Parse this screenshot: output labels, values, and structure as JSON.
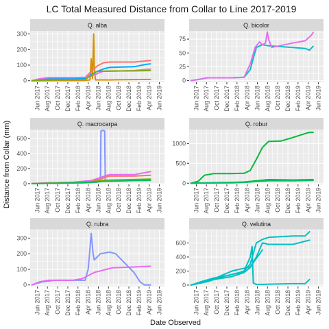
{
  "title": "LC Total Measured Distance from Collar to Line 2017-2019",
  "x_axis_title": "Date Observed",
  "y_axis_title": "Distance from Collar (mm)",
  "x_tick_labels": [
    "Jun 2017",
    "Aug 2017",
    "Oct 2017",
    "Dec 2017",
    "Feb 2018",
    "Apr 2018",
    "Jun 2018",
    "Aug 2018",
    "Oct 2018",
    "Dec 2018",
    "Feb 2019",
    "Apr 2019",
    "Jun 2019"
  ],
  "colors": {
    "orange": "#D89000",
    "salmon": "#F8766D",
    "blue": "#00A9FF",
    "purple": "#C77CFF",
    "magenta": "#E76BF3",
    "teal": "#00BFC4",
    "periwinkle": "#8494FF",
    "green": "#00BA38",
    "olive": "#7CAE00",
    "seagreen": "#00BE67"
  },
  "chart_data": {
    "type": "line",
    "x_range": [
      2017.3,
      2019.5
    ],
    "x_ticks": [
      2017.417,
      2017.583,
      2017.75,
      2017.917,
      2018.083,
      2018.25,
      2018.417,
      2018.583,
      2018.75,
      2018.917,
      2019.083,
      2019.25,
      2019.417
    ],
    "panels": [
      {
        "strip": "Q. alba",
        "ylim": [
          -10,
          320
        ],
        "y_ticks": [
          0,
          100,
          200,
          300
        ],
        "y_tick_labels": [
          "0",
          "100",
          "200",
          "300"
        ],
        "series": [
          {
            "color": "#D89000",
            "x": [
              2017.33,
              2017.5,
              2017.7,
              2018.0,
              2018.2,
              2018.28,
              2018.3,
              2018.32,
              2018.34,
              2018.35,
              2018.37,
              2018.5,
              2018.6,
              2018.75,
              2019.0,
              2019.27
            ],
            "y": [
              0,
              0,
              1,
              1,
              2,
              5,
              140,
              15,
              300,
              90,
              5,
              5,
              5,
              6,
              7,
              8
            ]
          },
          {
            "color": "#F8766D",
            "x": [
              2017.33,
              2017.45,
              2017.6,
              2018.0,
              2018.2,
              2018.3,
              2018.4,
              2018.5,
              2018.6,
              2019.0,
              2019.27
            ],
            "y": [
              0,
              8,
              15,
              18,
              20,
              60,
              95,
              115,
              120,
              120,
              130
            ]
          },
          {
            "color": "#00A9FF",
            "x": [
              2017.33,
              2017.5,
              2017.8,
              2018.2,
              2018.3,
              2018.4,
              2018.5,
              2018.6,
              2019.0,
              2019.2,
              2019.27
            ],
            "y": [
              0,
              10,
              12,
              15,
              40,
              60,
              75,
              85,
              90,
              105,
              108
            ]
          },
          {
            "color": "#E76BF3",
            "x": [
              2017.33,
              2017.45,
              2017.6,
              2018.0,
              2018.2,
              2018.3,
              2018.4,
              2018.45,
              2018.5,
              2019.0,
              2019.27
            ],
            "y": [
              0,
              12,
              20,
              20,
              22,
              30,
              45,
              55,
              60,
              65,
              75
            ]
          },
          {
            "color": "#7CAE00",
            "x": [
              2017.33,
              2017.6,
              2018.2,
              2018.4,
              2018.6,
              2019.0,
              2019.27
            ],
            "y": [
              0,
              5,
              8,
              60,
              62,
              63,
              65
            ]
          }
        ]
      },
      {
        "strip": "Q. bicolor",
        "ylim": [
          -3,
          90
        ],
        "y_ticks": [
          0,
          25,
          50,
          75
        ],
        "y_tick_labels": [
          "0",
          "25",
          "50",
          "75"
        ],
        "series": [
          {
            "color": "#00BFC4",
            "x": [
              2017.33,
              2017.45,
              2017.6,
              2018.0,
              2018.2,
              2018.3,
              2018.35,
              2018.4,
              2018.5,
              2018.6,
              2019.0,
              2019.2,
              2019.27,
              2019.33
            ],
            "y": [
              0,
              2,
              5,
              5,
              6,
              20,
              40,
              60,
              65,
              63,
              60,
              58,
              55,
              62
            ]
          },
          {
            "color": "#E76BF3",
            "x": [
              2017.33,
              2017.45,
              2017.6,
              2018.0,
              2018.2,
              2018.3,
              2018.38,
              2018.45,
              2018.5,
              2018.55,
              2018.58,
              2018.6,
              2018.65,
              2019.0,
              2019.2,
              2019.3,
              2019.33
            ],
            "y": [
              0,
              2,
              5,
              5,
              6,
              30,
              60,
              70,
              65,
              68,
              88,
              75,
              60,
              68,
              72,
              82,
              87
            ]
          }
        ]
      },
      {
        "strip": "Q. macrocarpa",
        "ylim": [
          -10,
          720
        ],
        "y_ticks": [
          0,
          200,
          400,
          600
        ],
        "y_tick_labels": [
          "0",
          "200",
          "400",
          "600"
        ],
        "series": [
          {
            "color": "#8494FF",
            "x": [
              2017.33,
              2017.8,
              2018.2,
              2018.4,
              2018.45,
              2018.46,
              2018.5,
              2018.52,
              2018.53,
              2018.6,
              2019.0,
              2019.27
            ],
            "y": [
              0,
              5,
              10,
              20,
              30,
              700,
              710,
              700,
              40,
              40,
              40,
              42
            ]
          },
          {
            "color": "#E76BF3",
            "x": [
              2017.33,
              2017.6,
              2018.0,
              2018.3,
              2018.45,
              2018.55,
              2018.6,
              2019.0,
              2019.27
            ],
            "y": [
              0,
              10,
              20,
              40,
              80,
              110,
              120,
              120,
              160
            ]
          },
          {
            "color": "#F8766D",
            "x": [
              2017.33,
              2017.6,
              2018.0,
              2018.3,
              2018.45,
              2018.55,
              2018.6,
              2019.0,
              2019.27
            ],
            "y": [
              0,
              10,
              15,
              30,
              60,
              90,
              100,
              100,
              110
            ]
          },
          {
            "color": "#7CAE00",
            "x": [
              2017.33,
              2017.6,
              2018.0,
              2018.3,
              2018.5,
              2019.0,
              2019.27
            ],
            "y": [
              0,
              5,
              10,
              25,
              45,
              55,
              60
            ]
          },
          {
            "color": "#00BE67",
            "x": [
              2017.33,
              2017.7,
              2018.0,
              2018.3,
              2018.5,
              2019.0,
              2019.27
            ],
            "y": [
              0,
              5,
              8,
              15,
              30,
              40,
              45
            ]
          }
        ]
      },
      {
        "strip": "Q. robur",
        "ylim": [
          -30,
          1350
        ],
        "y_ticks": [
          0,
          500,
          1000
        ],
        "y_tick_labels": [
          "0",
          "500",
          "1000"
        ],
        "series": [
          {
            "color": "#00BA38",
            "x": [
              2017.33,
              2017.45,
              2017.55,
              2017.7,
              2017.8,
              2018.0,
              2018.2,
              2018.3,
              2018.4,
              2018.5,
              2018.6,
              2018.8,
              2019.0,
              2019.2,
              2019.27,
              2019.33
            ],
            "y": [
              0,
              50,
              200,
              240,
              240,
              240,
              250,
              320,
              600,
              900,
              1050,
              1060,
              1150,
              1250,
              1280,
              1280
            ]
          },
          {
            "color": "#00BA38",
            "x": [
              2017.33,
              2017.6,
              2018.0,
              2018.2,
              2018.4,
              2018.6,
              2019.0,
              2019.33
            ],
            "y": [
              0,
              10,
              20,
              30,
              60,
              90,
              80,
              90
            ]
          },
          {
            "color": "#00BE67",
            "x": [
              2017.33,
              2017.6,
              2018.0,
              2018.2,
              2018.4,
              2018.6,
              2019.0,
              2019.33
            ],
            "y": [
              0,
              5,
              10,
              20,
              40,
              60,
              60,
              70
            ]
          }
        ]
      },
      {
        "strip": "Q. rubra",
        "ylim": [
          -10,
          350
        ],
        "y_ticks": [
          0,
          100,
          200,
          300
        ],
        "y_tick_labels": [
          "0",
          "100",
          "200",
          "300"
        ],
        "series": [
          {
            "color": "#8494FF",
            "x": [
              2017.33,
              2017.5,
              2017.7,
              2018.0,
              2018.2,
              2018.25,
              2018.3,
              2018.33,
              2018.35,
              2018.45,
              2018.6,
              2018.7,
              2018.8,
              2019.0,
              2019.1,
              2019.17,
              2019.27
            ],
            "y": [
              0,
              20,
              30,
              30,
              30,
              100,
              330,
              200,
              160,
              200,
              210,
              200,
              160,
              80,
              20,
              0,
              0
            ]
          },
          {
            "color": "#E76BF3",
            "x": [
              2017.33,
              2017.45,
              2017.6,
              2017.8,
              2018.0,
              2018.15,
              2018.25,
              2018.35,
              2018.45,
              2018.55,
              2018.65,
              2019.0,
              2019.27
            ],
            "y": [
              0,
              20,
              30,
              30,
              30,
              40,
              60,
              80,
              90,
              100,
              110,
              115,
              120
            ]
          }
        ]
      },
      {
        "strip": "Q. velutina",
        "ylim": [
          -20,
          780
        ],
        "y_ticks": [
          0,
          200,
          400,
          600
        ],
        "y_tick_labels": [
          "0",
          "200",
          "400",
          "600"
        ],
        "series": [
          {
            "color": "#00BFC4",
            "x": [
              2017.33,
              2017.5,
              2017.7,
              2018.0,
              2018.2,
              2018.3,
              2018.35,
              2018.4,
              2018.5,
              2018.6,
              2019.0,
              2019.2,
              2019.27
            ],
            "y": [
              0,
              50,
              100,
              150,
              200,
              300,
              450,
              600,
              650,
              680,
              700,
              700,
              760
            ]
          },
          {
            "color": "#00BFC4",
            "x": [
              2017.33,
              2017.5,
              2017.7,
              2018.0,
              2018.2,
              2018.3,
              2018.4,
              2018.5,
              2018.6,
              2019.0,
              2019.27
            ],
            "y": [
              0,
              40,
              80,
              120,
              180,
              250,
              400,
              600,
              580,
              580,
              640
            ]
          },
          {
            "color": "#00BFC4",
            "x": [
              2017.33,
              2017.6,
              2017.9,
              2018.1,
              2018.2,
              2018.25,
              2018.3,
              2018.33,
              2018.35,
              2018.4,
              2018.5,
              2019.0,
              2019.2,
              2019.27
            ],
            "y": [
              0,
              50,
              130,
              170,
              200,
              300,
              400,
              550,
              30,
              10,
              10,
              20,
              20,
              80
            ]
          },
          {
            "color": "#00BFC4",
            "x": [
              2017.33,
              2017.6,
              2018.0,
              2018.3,
              2018.5
            ],
            "y": [
              0,
              50,
              200,
              260,
              500
            ]
          }
        ]
      }
    ]
  }
}
